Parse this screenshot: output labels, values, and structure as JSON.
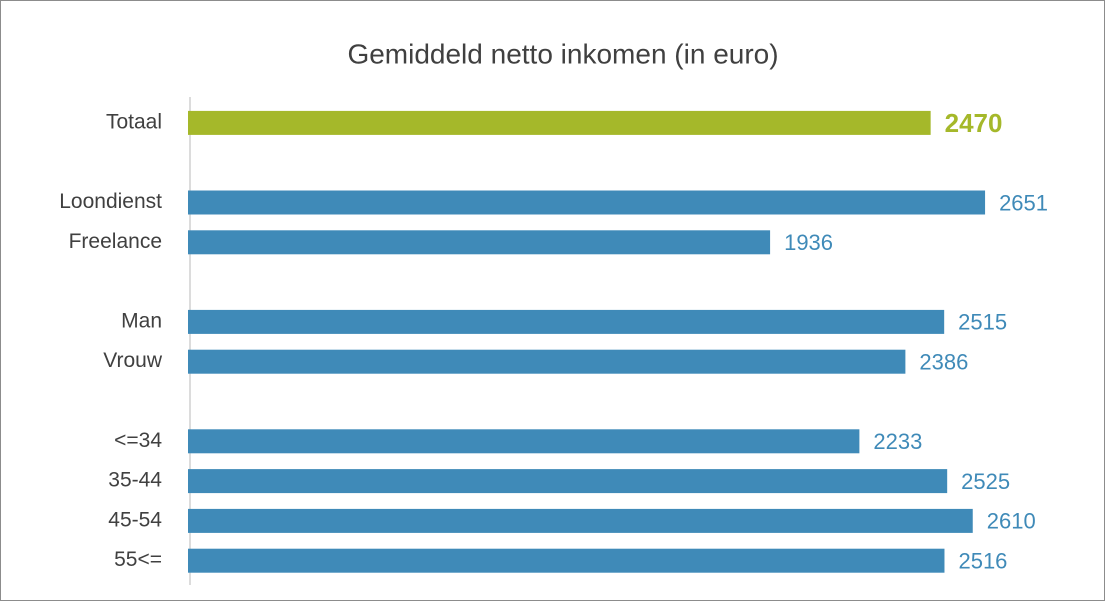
{
  "chart_data": {
    "type": "hbar",
    "title": "Gemiddeld netto inkomen (in euro)",
    "categories": [
      "Totaal",
      null,
      "Loondienst",
      "Freelance",
      null,
      "Man",
      "Vrouw",
      null,
      "<=34",
      "35-44",
      "45-54",
      "55<="
    ],
    "values": [
      2470,
      null,
      2651,
      1936,
      null,
      2515,
      2386,
      null,
      2233,
      2525,
      2610,
      2516
    ],
    "colors": [
      "#a5b82a",
      null,
      "#3f8ab8",
      "#3f8ab8",
      null,
      "#3f8ab8",
      "#3f8ab8",
      null,
      "#3f8ab8",
      "#3f8ab8",
      "#3f8ab8",
      "#3f8ab8"
    ],
    "bold_value_labels": [
      true,
      null,
      false,
      false,
      null,
      false,
      false,
      null,
      false,
      false,
      false,
      false
    ],
    "xlim": [
      0,
      3000
    ]
  }
}
